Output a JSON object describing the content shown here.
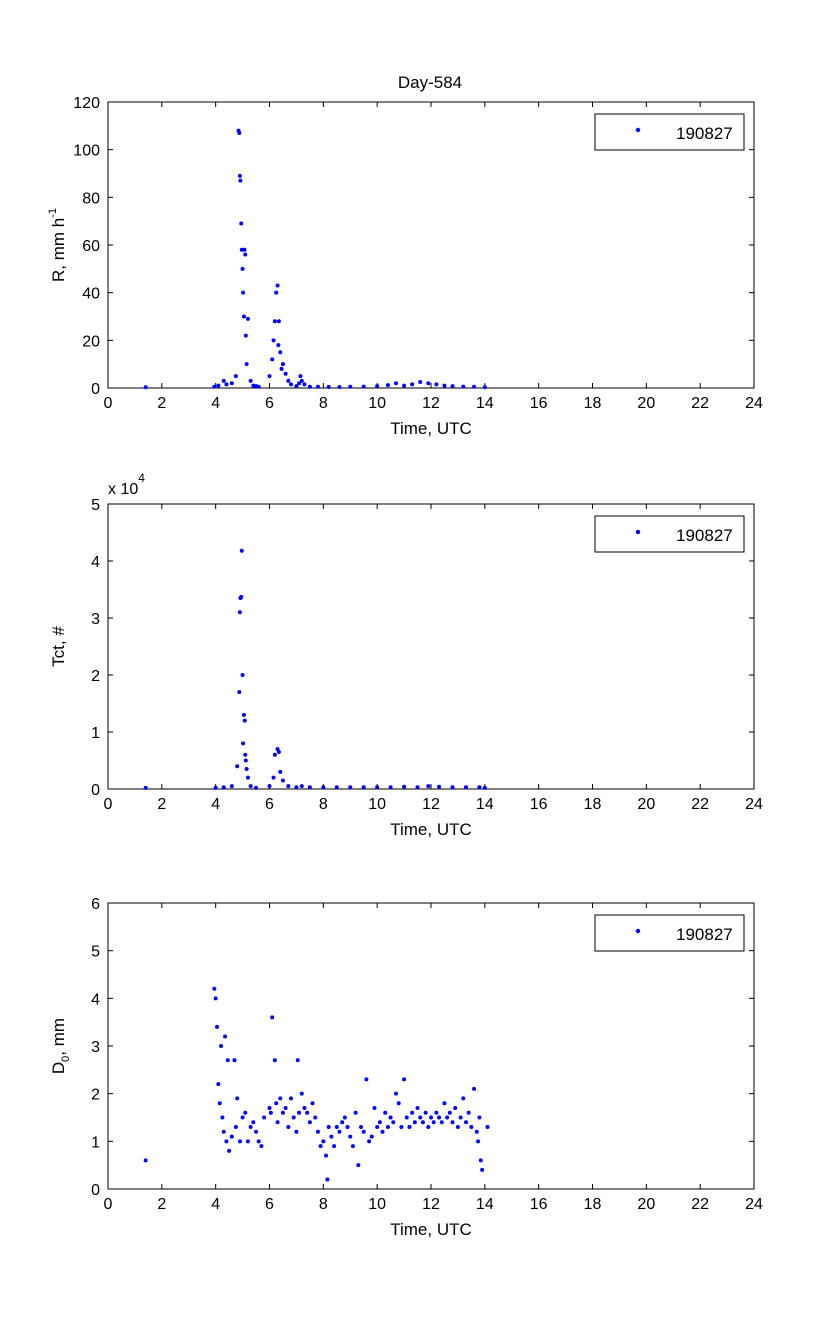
{
  "figure_title": "Day-584",
  "colors": {
    "marker": "#0000ff",
    "axes": "#000000",
    "background": "#ffffff"
  },
  "chart_data": [
    {
      "type": "scatter",
      "ylabel": "R, mm h",
      "ylabel_superscript": "-1",
      "xlabel": "Time, UTC",
      "xlim": [
        0,
        24
      ],
      "ylim": [
        0,
        120
      ],
      "xticks": [
        0,
        2,
        4,
        6,
        8,
        10,
        12,
        14,
        16,
        18,
        20,
        22,
        24
      ],
      "yticks": [
        0,
        20,
        40,
        60,
        80,
        100,
        120
      ],
      "legend": {
        "position": "top-right",
        "entries": [
          "190827"
        ]
      },
      "series": [
        {
          "name": "190827",
          "x": [
            1.4,
            3.95,
            4.1,
            4.3,
            4.4,
            4.6,
            4.75,
            4.85,
            4.88,
            4.9,
            4.92,
            4.95,
            4.97,
            5.0,
            5.02,
            5.05,
            5.07,
            5.1,
            5.12,
            5.15,
            5.2,
            5.3,
            5.4,
            5.5,
            5.6,
            6.0,
            6.1,
            6.15,
            6.2,
            6.25,
            6.3,
            6.33,
            6.35,
            6.4,
            6.45,
            6.5,
            6.6,
            6.7,
            6.8,
            7.0,
            7.1,
            7.15,
            7.2,
            7.3,
            7.5,
            7.8,
            8.2,
            8.6,
            9.0,
            9.5,
            10.0,
            10.4,
            10.7,
            11.0,
            11.3,
            11.6,
            11.9,
            12.2,
            12.5,
            12.8,
            13.2,
            13.6,
            14.0
          ],
          "y": [
            0.3,
            0.5,
            1.0,
            3.0,
            1.5,
            2.0,
            5.0,
            108,
            107,
            89,
            87,
            69,
            58,
            50,
            40,
            30,
            58,
            56,
            22,
            10,
            29,
            3,
            1,
            0.8,
            0.5,
            5,
            12,
            20,
            28,
            40,
            43,
            18,
            28,
            15,
            8,
            10,
            6,
            3,
            1.5,
            0.8,
            2,
            5,
            3,
            1.5,
            0.5,
            0.5,
            0.4,
            0.4,
            0.5,
            0.6,
            0.8,
            1.2,
            2.0,
            1.0,
            1.5,
            2.5,
            2.0,
            1.5,
            1.0,
            0.8,
            0.6,
            0.5,
            0.3
          ]
        }
      ]
    },
    {
      "type": "scatter",
      "ylabel": "Tct, #",
      "xlabel": "Time, UTC",
      "exponent_label": "x 10",
      "exponent": "4",
      "xlim": [
        0,
        24
      ],
      "ylim": [
        0,
        5
      ],
      "xticks": [
        0,
        2,
        4,
        6,
        8,
        10,
        12,
        14,
        16,
        18,
        20,
        22,
        24
      ],
      "yticks": [
        0,
        1,
        2,
        3,
        4,
        5
      ],
      "legend": {
        "position": "top-right",
        "entries": [
          "190827"
        ]
      },
      "series": [
        {
          "name": "190827",
          "x": [
            1.4,
            4.0,
            4.3,
            4.6,
            4.8,
            4.88,
            4.9,
            4.92,
            4.95,
            4.97,
            5.0,
            5.02,
            5.05,
            5.08,
            5.1,
            5.12,
            5.15,
            5.2,
            5.3,
            5.5,
            6.0,
            6.15,
            6.2,
            6.3,
            6.35,
            6.4,
            6.5,
            6.7,
            7.0,
            7.2,
            7.5,
            8.0,
            8.5,
            9.0,
            9.5,
            10.0,
            10.5,
            11.0,
            11.5,
            11.9,
            12.3,
            12.8,
            13.3,
            13.8,
            14.0
          ],
          "y": [
            0.02,
            0.02,
            0.03,
            0.05,
            0.4,
            1.7,
            3.1,
            3.35,
            3.37,
            4.18,
            2.0,
            0.8,
            1.3,
            1.2,
            0.6,
            0.5,
            0.35,
            0.2,
            0.05,
            0.02,
            0.05,
            0.2,
            0.6,
            0.7,
            0.65,
            0.3,
            0.15,
            0.05,
            0.03,
            0.05,
            0.03,
            0.03,
            0.03,
            0.03,
            0.03,
            0.03,
            0.03,
            0.04,
            0.03,
            0.05,
            0.04,
            0.03,
            0.03,
            0.03,
            0.02
          ]
        }
      ]
    },
    {
      "type": "scatter",
      "ylabel": "D",
      "ylabel_subscript": "0",
      "ylabel_suffix": ", mm",
      "xlabel": "Time, UTC",
      "xlim": [
        0,
        24
      ],
      "ylim": [
        0,
        6
      ],
      "xticks": [
        0,
        2,
        4,
        6,
        8,
        10,
        12,
        14,
        16,
        18,
        20,
        22,
        24
      ],
      "yticks": [
        0,
        1,
        2,
        3,
        4,
        5,
        6
      ],
      "legend": {
        "position": "top-right",
        "entries": [
          "190827"
        ]
      },
      "series": [
        {
          "name": "190827",
          "x": [
            1.4,
            3.95,
            4.0,
            4.05,
            4.1,
            4.15,
            4.2,
            4.25,
            4.3,
            4.35,
            4.4,
            4.45,
            4.5,
            4.6,
            4.7,
            4.75,
            4.8,
            4.9,
            5.0,
            5.1,
            5.2,
            5.3,
            5.4,
            5.5,
            5.6,
            5.7,
            5.8,
            6.0,
            6.05,
            6.1,
            6.2,
            6.25,
            6.3,
            6.4,
            6.5,
            6.6,
            6.7,
            6.8,
            6.9,
            7.0,
            7.05,
            7.1,
            7.2,
            7.3,
            7.4,
            7.5,
            7.6,
            7.7,
            7.8,
            7.9,
            8.0,
            8.1,
            8.15,
            8.2,
            8.3,
            8.4,
            8.5,
            8.6,
            8.7,
            8.8,
            8.9,
            9.0,
            9.1,
            9.2,
            9.3,
            9.4,
            9.5,
            9.6,
            9.7,
            9.8,
            9.9,
            10.0,
            10.1,
            10.2,
            10.3,
            10.4,
            10.5,
            10.6,
            10.7,
            10.8,
            10.9,
            11.0,
            11.1,
            11.2,
            11.3,
            11.4,
            11.5,
            11.6,
            11.7,
            11.8,
            11.9,
            12.0,
            12.1,
            12.2,
            12.3,
            12.4,
            12.5,
            12.6,
            12.7,
            12.8,
            12.9,
            13.0,
            13.1,
            13.2,
            13.3,
            13.4,
            13.5,
            13.6,
            13.7,
            13.75,
            13.8,
            13.85,
            13.9,
            14.1
          ],
          "y": [
            0.6,
            4.2,
            4.0,
            3.4,
            2.2,
            1.8,
            3.0,
            1.5,
            1.2,
            3.2,
            1.0,
            2.7,
            0.8,
            1.1,
            2.7,
            1.3,
            1.9,
            1.0,
            1.5,
            1.6,
            1.0,
            1.3,
            1.4,
            1.2,
            1.0,
            0.9,
            1.5,
            1.7,
            1.6,
            3.6,
            2.7,
            1.8,
            1.4,
            1.9,
            1.6,
            1.7,
            1.3,
            1.9,
            1.5,
            1.2,
            2.7,
            1.6,
            2.0,
            1.7,
            1.6,
            1.4,
            1.8,
            1.5,
            1.2,
            0.9,
            1.0,
            0.7,
            0.2,
            1.3,
            1.1,
            0.9,
            1.3,
            1.2,
            1.4,
            1.5,
            1.3,
            1.1,
            0.9,
            1.6,
            0.5,
            1.3,
            1.2,
            2.3,
            1.0,
            1.1,
            1.7,
            1.3,
            1.4,
            1.2,
            1.6,
            1.3,
            1.5,
            1.4,
            2.0,
            1.8,
            1.3,
            2.3,
            1.5,
            1.3,
            1.6,
            1.4,
            1.7,
            1.5,
            1.4,
            1.6,
            1.3,
            1.5,
            1.4,
            1.6,
            1.5,
            1.4,
            1.8,
            1.5,
            1.6,
            1.4,
            1.7,
            1.3,
            1.5,
            1.9,
            1.4,
            1.6,
            1.3,
            2.1,
            1.2,
            1.0,
            1.5,
            0.6,
            0.4,
            1.3
          ]
        }
      ]
    }
  ]
}
